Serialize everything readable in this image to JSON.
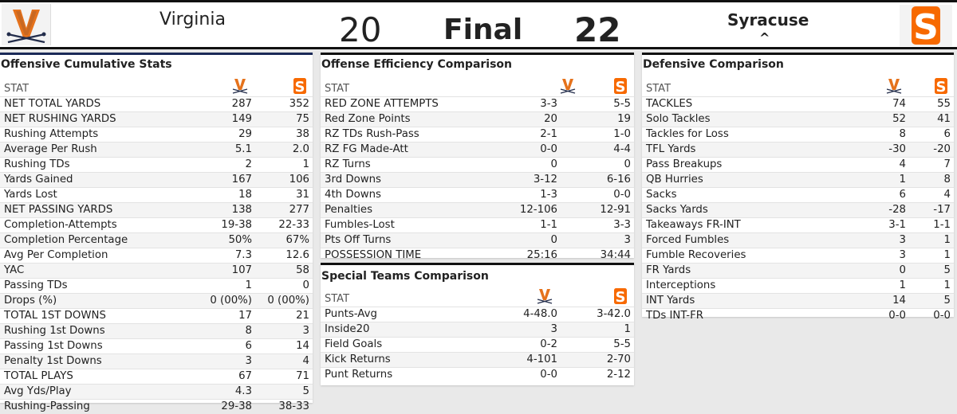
{
  "scoreboard": {
    "away_team": "Virginia",
    "away_score": "20",
    "status": "Final",
    "home_score": "22",
    "home_team": "Syracuse",
    "home_indicator": "^",
    "colors": {
      "uva_orange": "#e5721c",
      "uva_navy": "#232d4b",
      "su_orange": "#f76900"
    },
    "logo_letter": "S"
  },
  "offense": {
    "title": "Offensive Cumulative Stats",
    "stat_header": "STAT",
    "rows": [
      [
        "NET TOTAL YARDS",
        "287",
        "352"
      ],
      [
        "NET RUSHING YARDS",
        "149",
        "75"
      ],
      [
        "Rushing Attempts",
        "29",
        "38"
      ],
      [
        "Average Per Rush",
        "5.1",
        "2.0"
      ],
      [
        "Rushing TDs",
        "2",
        "1"
      ],
      [
        "Yards Gained",
        "167",
        "106"
      ],
      [
        "Yards Lost",
        "18",
        "31"
      ],
      [
        "NET PASSING YARDS",
        "138",
        "277"
      ],
      [
        "Completion-Attempts",
        "19-38",
        "22-33"
      ],
      [
        "Completion Percentage",
        "50%",
        "67%"
      ],
      [
        "Avg Per Completion",
        "7.3",
        "12.6"
      ],
      [
        "YAC",
        "107",
        "58"
      ],
      [
        "Passing TDs",
        "1",
        "0"
      ],
      [
        "Drops (%)",
        "0 (00%)",
        "0 (00%)"
      ],
      [
        "TOTAL 1ST DOWNS",
        "17",
        "21"
      ],
      [
        "Rushing 1st Downs",
        "8",
        "3"
      ],
      [
        "Passing 1st Downs",
        "6",
        "14"
      ],
      [
        "Penalty 1st Downs",
        "3",
        "4"
      ],
      [
        "TOTAL PLAYS",
        "67",
        "71"
      ],
      [
        "Avg Yds/Play",
        "4.3",
        "5"
      ],
      [
        "Rushing-Passing",
        "29-38",
        "38-33"
      ]
    ]
  },
  "efficiency": {
    "title": "Offense Efficiency Comparison",
    "stat_header": "STAT",
    "rows": [
      [
        "RED ZONE ATTEMPTS",
        "3-3",
        "5-5"
      ],
      [
        "Red Zone Points",
        "20",
        "19"
      ],
      [
        "RZ TDs Rush-Pass",
        "2-1",
        "1-0"
      ],
      [
        "RZ FG Made-Att",
        "0-0",
        "4-4"
      ],
      [
        "RZ Turns",
        "0",
        "0"
      ],
      [
        "3rd Downs",
        "3-12",
        "6-16"
      ],
      [
        "4th Downs",
        "1-3",
        "0-0"
      ],
      [
        "Penalties",
        "12-106",
        "12-91"
      ],
      [
        "Fumbles-Lost",
        "1-1",
        "3-3"
      ],
      [
        "Pts Off Turns",
        "0",
        "3"
      ],
      [
        "POSSESSION TIME",
        "25:16",
        "34:44"
      ]
    ]
  },
  "special_teams": {
    "title": "Special Teams Comparison",
    "stat_header": "STAT",
    "rows": [
      [
        "Punts-Avg",
        "4-48.0",
        "3-42.0"
      ],
      [
        "Inside20",
        "3",
        "1"
      ],
      [
        "Field Goals",
        "0-2",
        "5-5"
      ],
      [
        "Kick Returns",
        "4-101",
        "2-70"
      ],
      [
        "Punt Returns",
        "0-0",
        "2-12"
      ]
    ]
  },
  "defense": {
    "title": "Defensive Comparison",
    "stat_header": "STAT",
    "rows": [
      [
        "TACKLES",
        "74",
        "55"
      ],
      [
        "Solo Tackles",
        "52",
        "41"
      ],
      [
        "Tackles for Loss",
        "8",
        "6"
      ],
      [
        "TFL Yards",
        "-30",
        "-20"
      ],
      [
        "Pass Breakups",
        "4",
        "7"
      ],
      [
        "QB Hurries",
        "1",
        "8"
      ],
      [
        "Sacks",
        "6",
        "4"
      ],
      [
        "Sacks Yards",
        "-28",
        "-17"
      ],
      [
        "Takeaways FR-INT",
        "3-1",
        "1-1"
      ],
      [
        "Forced Fumbles",
        "3",
        "1"
      ],
      [
        "Fumble Recoveries",
        "3",
        "1"
      ],
      [
        "FR Yards",
        "0",
        "5"
      ],
      [
        "Interceptions",
        "1",
        "1"
      ],
      [
        "INT Yards",
        "14",
        "5"
      ],
      [
        "TDs INT-FR",
        "0-0",
        "0-0"
      ]
    ]
  }
}
